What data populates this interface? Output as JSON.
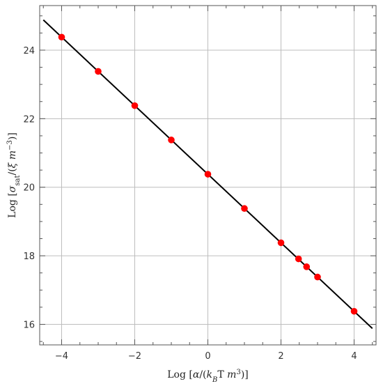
{
  "chart_data": {
    "type": "scatter",
    "title": "",
    "xlabel": "Log [α/(k_B T m^3)]",
    "ylabel": "Log [σ_sat/(ξ m^-3)]",
    "xlim": [
      -4.6,
      4.6
    ],
    "ylim": [
      15.4,
      25.3
    ],
    "x_ticks": [
      -4,
      -2,
      0,
      2,
      4
    ],
    "y_ticks": [
      16,
      18,
      20,
      22,
      24
    ],
    "x_tick_labels": [
      "−4",
      "−2",
      "0",
      "2",
      "4"
    ],
    "y_tick_labels": [
      "16",
      "18",
      "20",
      "22",
      "24"
    ],
    "grid": true,
    "points": {
      "color": "#ff0000",
      "x": [
        -4,
        -3,
        -2,
        -1,
        0,
        1,
        2,
        2.48,
        2.7,
        3,
        4
      ],
      "y": [
        24.38,
        23.38,
        22.38,
        21.38,
        20.38,
        19.38,
        18.38,
        17.91,
        17.68,
        17.38,
        16.38
      ]
    },
    "fit_line": {
      "color": "#000000",
      "x": [
        -4.5,
        4.5
      ],
      "y": [
        24.88,
        15.88
      ]
    }
  }
}
